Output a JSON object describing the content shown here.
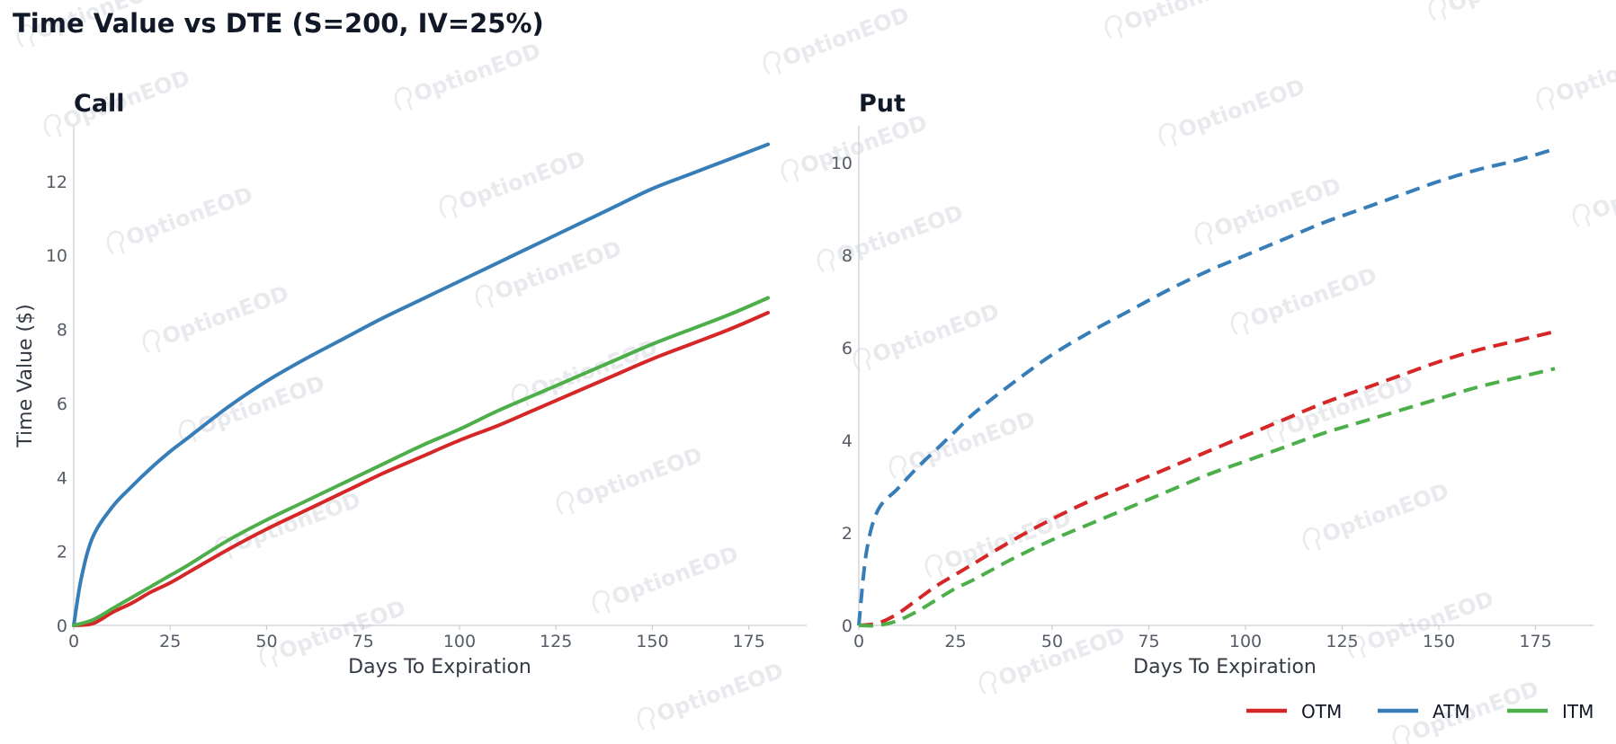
{
  "title": "Time Value vs DTE (S=200, IV=25%)",
  "watermark": "OptionEOD",
  "legend": [
    {
      "label": "OTM",
      "color": "#d62728"
    },
    {
      "label": "ATM",
      "color": "#377eb8"
    },
    {
      "label": "ITM",
      "color": "#4daf4a"
    }
  ],
  "chart_data": [
    {
      "type": "line",
      "title": "Call",
      "xlabel": "Days To Expiration",
      "ylabel": "Time Value ($)",
      "xlim": [
        0,
        190
      ],
      "ylim": [
        0,
        13.5
      ],
      "xticks": [
        0,
        25,
        50,
        75,
        100,
        125,
        150,
        175
      ],
      "yticks": [
        0,
        2,
        4,
        6,
        8,
        10,
        12
      ],
      "line_style": "solid",
      "series": [
        {
          "name": "OTM",
          "color": "#d62728",
          "x": [
            0,
            5,
            10,
            15,
            20,
            25,
            30,
            40,
            50,
            60,
            70,
            80,
            90,
            100,
            110,
            120,
            130,
            140,
            150,
            160,
            170,
            180
          ],
          "y": [
            0,
            0.05,
            0.35,
            0.6,
            0.9,
            1.15,
            1.45,
            2.05,
            2.6,
            3.1,
            3.6,
            4.1,
            4.55,
            5.0,
            5.4,
            5.85,
            6.3,
            6.75,
            7.2,
            7.6,
            8.0,
            8.45
          ]
        },
        {
          "name": "ATM",
          "color": "#377eb8",
          "x": [
            0,
            2,
            5,
            10,
            15,
            20,
            25,
            30,
            40,
            50,
            60,
            70,
            80,
            90,
            100,
            110,
            120,
            130,
            140,
            150,
            160,
            170,
            180
          ],
          "y": [
            0,
            1.3,
            2.4,
            3.2,
            3.75,
            4.25,
            4.7,
            5.1,
            5.9,
            6.6,
            7.2,
            7.75,
            8.3,
            8.8,
            9.3,
            9.8,
            10.3,
            10.8,
            11.3,
            11.8,
            12.2,
            12.6,
            13.0
          ]
        },
        {
          "name": "ITM",
          "color": "#4daf4a",
          "x": [
            0,
            5,
            10,
            15,
            20,
            25,
            30,
            40,
            50,
            60,
            70,
            80,
            90,
            100,
            110,
            120,
            130,
            140,
            150,
            160,
            170,
            180
          ],
          "y": [
            0,
            0.15,
            0.45,
            0.75,
            1.05,
            1.35,
            1.65,
            2.3,
            2.85,
            3.35,
            3.85,
            4.35,
            4.85,
            5.3,
            5.8,
            6.25,
            6.7,
            7.15,
            7.6,
            8.0,
            8.4,
            8.85
          ]
        }
      ]
    },
    {
      "type": "line",
      "title": "Put",
      "xlabel": "Days To Expiration",
      "ylabel": "",
      "xlim": [
        0,
        190
      ],
      "ylim": [
        0,
        10.8
      ],
      "xticks": [
        0,
        25,
        50,
        75,
        100,
        125,
        150,
        175
      ],
      "yticks": [
        0,
        2,
        4,
        6,
        8,
        10
      ],
      "line_style": "dashed",
      "series": [
        {
          "name": "OTM",
          "color": "#d62728",
          "x": [
            0,
            5,
            10,
            15,
            20,
            25,
            30,
            40,
            50,
            60,
            70,
            80,
            90,
            100,
            110,
            120,
            130,
            140,
            150,
            160,
            170,
            180
          ],
          "y": [
            0,
            0.05,
            0.25,
            0.55,
            0.85,
            1.1,
            1.35,
            1.85,
            2.3,
            2.7,
            3.05,
            3.4,
            3.75,
            4.1,
            4.45,
            4.8,
            5.1,
            5.4,
            5.7,
            5.95,
            6.15,
            6.35
          ]
        },
        {
          "name": "ATM",
          "color": "#377eb8",
          "x": [
            0,
            2,
            5,
            10,
            15,
            20,
            25,
            30,
            40,
            50,
            60,
            70,
            80,
            90,
            100,
            110,
            120,
            130,
            140,
            150,
            160,
            170,
            180
          ],
          "y": [
            0,
            1.6,
            2.5,
            2.95,
            3.4,
            3.8,
            4.2,
            4.6,
            5.25,
            5.85,
            6.35,
            6.8,
            7.25,
            7.65,
            8.0,
            8.35,
            8.7,
            9.0,
            9.3,
            9.6,
            9.85,
            10.05,
            10.3
          ]
        },
        {
          "name": "ITM",
          "color": "#4daf4a",
          "x": [
            0,
            5,
            10,
            15,
            20,
            25,
            30,
            40,
            50,
            60,
            70,
            80,
            90,
            100,
            110,
            120,
            130,
            140,
            150,
            160,
            170,
            180
          ],
          "y": [
            0,
            0,
            0.1,
            0.3,
            0.55,
            0.8,
            1.0,
            1.45,
            1.85,
            2.2,
            2.55,
            2.9,
            3.25,
            3.55,
            3.85,
            4.15,
            4.4,
            4.65,
            4.9,
            5.15,
            5.35,
            5.55
          ]
        }
      ]
    }
  ]
}
